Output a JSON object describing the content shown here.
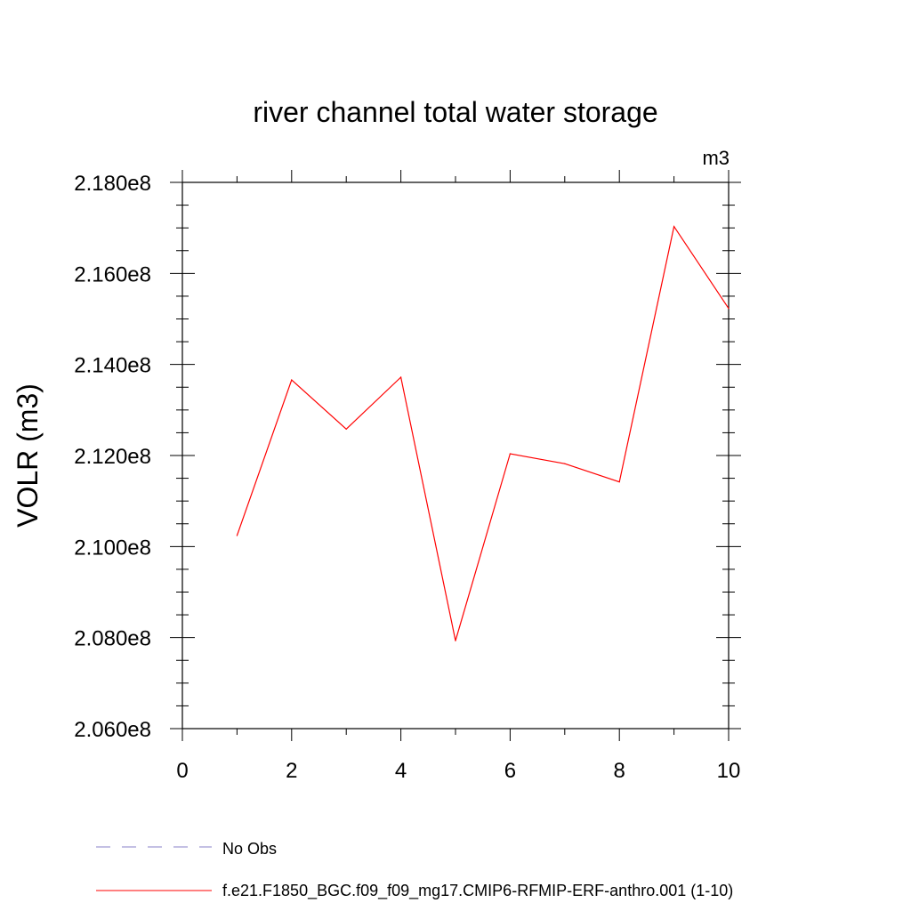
{
  "chart_data": {
    "type": "line",
    "title": "river channel total water storage",
    "units_label": "m3",
    "ylabel": "VOLR  (m3)",
    "xlabel": "",
    "xlim": [
      0,
      10
    ],
    "ylim": [
      206000000,
      218000000
    ],
    "x_ticks": [
      0,
      2,
      4,
      6,
      8,
      10
    ],
    "x_tick_labels": [
      "0",
      "2",
      "4",
      "6",
      "8",
      "10"
    ],
    "y_ticks": [
      206000000,
      208000000,
      210000000,
      212000000,
      214000000,
      216000000,
      218000000
    ],
    "y_tick_labels": [
      "2.060e8",
      "2.080e8",
      "2.100e8",
      "2.120e8",
      "2.140e8",
      "2.160e8",
      "2.180e8"
    ],
    "legend_position": "bottom-left",
    "series": [
      {
        "name": "No Obs",
        "color": "#8a80c8",
        "dash": "dashed",
        "x": [],
        "values": []
      },
      {
        "name": "f.e21.F1850_BGC.f09_f09_mg17.CMIP6-RFMIP-ERF-anthro.001 (1-10)",
        "color": "#ff0000",
        "dash": "solid",
        "x": [
          1,
          2,
          3,
          4,
          5,
          6,
          7,
          8,
          9,
          10
        ],
        "values": [
          210240000,
          213660000,
          212580000,
          213720000,
          207930000,
          212040000,
          211820000,
          211420000,
          217030000,
          215230000
        ]
      }
    ]
  }
}
